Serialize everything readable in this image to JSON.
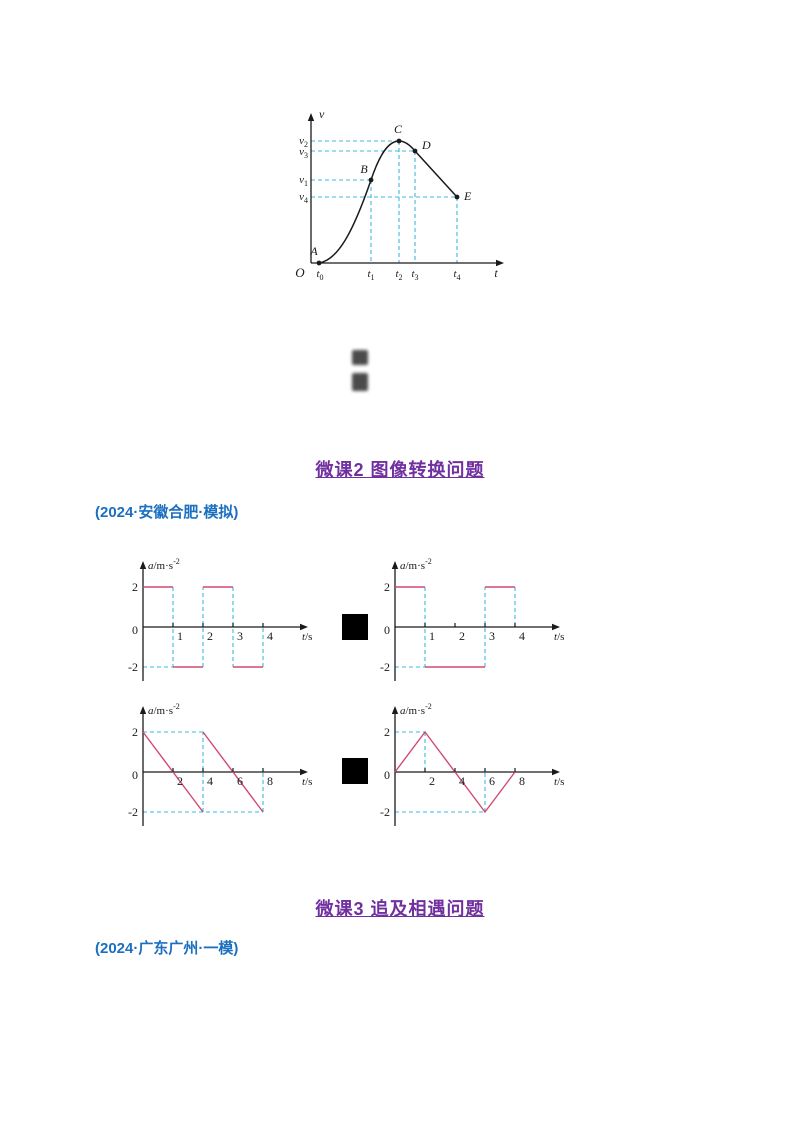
{
  "colors": {
    "axis": "#1a1a1a",
    "curve": "#1a1a1a",
    "dashed_cyan": "#3cb9e0",
    "series_pink": "#cf4a70",
    "heading_purple": "#7030a0",
    "citation_blue": "#1b6fc0",
    "redaction_black": "#000000"
  },
  "headings": [
    {
      "text": "微课2 图像转换问题"
    },
    {
      "text": "微课3 追及相遇问题"
    }
  ],
  "citations": [
    {
      "text": "(2024·安徽合肥·模拟)"
    },
    {
      "text": "(2024·广东广州·一模)"
    }
  ],
  "redactions": [
    {
      "shape": "black-square"
    },
    {
      "shape": "black-square"
    }
  ],
  "faint_marks": {
    "count": 2,
    "note": "two tiny illegible dark text marks below the v-t figure"
  },
  "vt": {
    "ylabel": "v",
    "xlabel": "t",
    "origin": "O",
    "points": [
      "A",
      "B",
      "C",
      "D",
      "E"
    ],
    "v_labels": [
      {
        "base": "v",
        "sub": "2"
      },
      {
        "base": "v",
        "sub": "3"
      },
      {
        "base": "v",
        "sub": "1"
      },
      {
        "base": "v",
        "sub": "4"
      }
    ],
    "t_labels": [
      {
        "base": "t",
        "sub": "0"
      },
      {
        "base": "t",
        "sub": "1"
      },
      {
        "base": "t",
        "sub": "2"
      },
      {
        "base": "t",
        "sub": "3"
      },
      {
        "base": "t",
        "sub": "4"
      }
    ]
  },
  "chart_data": [
    {
      "type": "line",
      "id": "vt",
      "title": "velocity-time curve",
      "xlabel": "t",
      "ylabel": "v",
      "keypoints": [
        {
          "label": "A",
          "t": "t0",
          "v": "0"
        },
        {
          "label": "B",
          "t": "t1",
          "v": "v1"
        },
        {
          "label": "C",
          "t": "t2",
          "v": "v2 (maximum)"
        },
        {
          "label": "D",
          "t": "t3",
          "v": "v3"
        },
        {
          "label": "E",
          "t": "t4",
          "v": "v4"
        }
      ],
      "value_order": "v2 > v3 > v1 > v4",
      "shape": "smooth S-shaped rise from A through B to peak C, then nearly straight descent through D to E",
      "guides": "cyan dashed lines from each labelled point to both axes"
    },
    {
      "type": "line",
      "id": "at1",
      "ylabel": "a/m·s⁻²",
      "ylabel_base": "a/m·s",
      "ylabel_sup": "-2",
      "xlabel": "t/s",
      "ylim": [
        -2,
        2
      ],
      "tmax": 4,
      "xticks": [
        1,
        2,
        3,
        4
      ],
      "yticks": [
        2,
        0,
        -2
      ],
      "solid": [
        [
          [
            0,
            2
          ],
          [
            1,
            2
          ]
        ],
        [
          [
            1,
            -2
          ],
          [
            2,
            -2
          ]
        ],
        [
          [
            2,
            2
          ],
          [
            3,
            2
          ]
        ],
        [
          [
            3,
            -2
          ],
          [
            4,
            -2
          ]
        ]
      ],
      "dashed": [
        [
          [
            1,
            2
          ],
          [
            1,
            -2
          ]
        ],
        [
          [
            2,
            -2
          ],
          [
            2,
            2
          ]
        ],
        [
          [
            3,
            2
          ],
          [
            3,
            -2
          ]
        ],
        [
          [
            4,
            -2
          ],
          [
            4,
            0
          ]
        ],
        [
          [
            0,
            -2
          ],
          [
            1,
            -2
          ]
        ]
      ]
    },
    {
      "type": "line",
      "id": "at2",
      "ylabel": "a/m·s⁻²",
      "ylabel_base": "a/m·s",
      "ylabel_sup": "-2",
      "xlabel": "t/s",
      "ylim": [
        -2,
        2
      ],
      "tmax": 4,
      "xticks": [
        1,
        2,
        3,
        4
      ],
      "yticks": [
        2,
        0,
        -2
      ],
      "solid": [
        [
          [
            0,
            2
          ],
          [
            1,
            2
          ]
        ],
        [
          [
            1,
            -2
          ],
          [
            3,
            -2
          ]
        ],
        [
          [
            3,
            2
          ],
          [
            4,
            2
          ]
        ]
      ],
      "dashed": [
        [
          [
            1,
            2
          ],
          [
            1,
            -2
          ]
        ],
        [
          [
            3,
            -2
          ],
          [
            3,
            2
          ]
        ],
        [
          [
            4,
            2
          ],
          [
            4,
            0
          ]
        ],
        [
          [
            0,
            -2
          ],
          [
            1,
            -2
          ]
        ]
      ]
    },
    {
      "type": "line",
      "id": "at3",
      "ylabel": "a/m·s⁻²",
      "ylabel_base": "a/m·s",
      "ylabel_sup": "-2",
      "xlabel": "t/s",
      "ylim": [
        -2,
        2
      ],
      "tmax": 8,
      "xticks": [
        2,
        4,
        6,
        8
      ],
      "yticks": [
        2,
        0,
        -2
      ],
      "solid": [
        [
          [
            0,
            2
          ],
          [
            4,
            -2
          ]
        ],
        [
          [
            4,
            2
          ],
          [
            8,
            -2
          ]
        ]
      ],
      "dashed": [
        [
          [
            0,
            2
          ],
          [
            4,
            2
          ]
        ],
        [
          [
            4,
            -2
          ],
          [
            4,
            2
          ]
        ],
        [
          [
            0,
            -2
          ],
          [
            8,
            -2
          ]
        ],
        [
          [
            8,
            -2
          ],
          [
            8,
            0
          ]
        ]
      ]
    },
    {
      "type": "line",
      "id": "at4",
      "ylabel": "a/m·s⁻²",
      "ylabel_base": "a/m·s",
      "ylabel_sup": "-2",
      "xlabel": "t/s",
      "ylim": [
        -2,
        2
      ],
      "tmax": 8,
      "xticks": [
        2,
        4,
        6,
        8
      ],
      "yticks": [
        2,
        0,
        -2
      ],
      "solid": [
        [
          [
            0,
            0
          ],
          [
            2,
            2
          ],
          [
            6,
            -2
          ],
          [
            8,
            0
          ]
        ]
      ],
      "dashed": [
        [
          [
            0,
            2
          ],
          [
            2,
            2
          ]
        ],
        [
          [
            2,
            2
          ],
          [
            2,
            0
          ]
        ],
        [
          [
            0,
            -2
          ],
          [
            6,
            -2
          ]
        ],
        [
          [
            6,
            -2
          ],
          [
            6,
            0
          ]
        ]
      ]
    }
  ]
}
